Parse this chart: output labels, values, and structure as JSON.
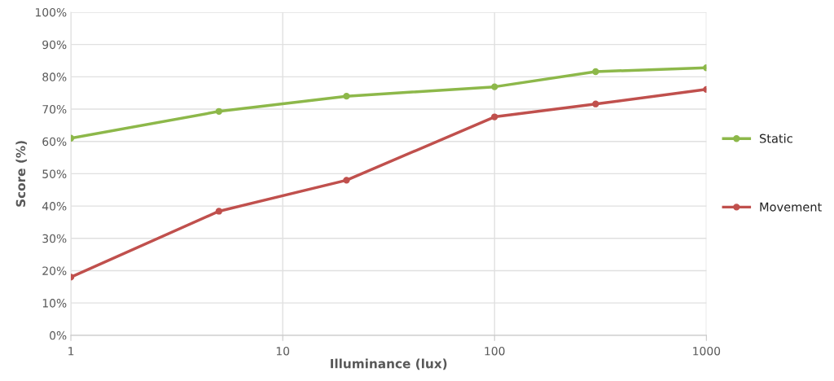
{
  "chart_data": {
    "type": "line",
    "xlabel": "Illuminance (lux)",
    "ylabel": "Score (%)",
    "x": [
      1,
      5,
      20,
      100,
      300,
      1000
    ],
    "series": [
      {
        "name": "Static",
        "color": "#8db84a",
        "values": [
          61,
          69.3,
          74,
          76.9,
          81.6,
          82.8
        ]
      },
      {
        "name": "Movement",
        "color": "#c0504d",
        "values": [
          18,
          38.4,
          48,
          67.6,
          71.6,
          76.1
        ]
      }
    ],
    "log": "x",
    "xlim": [
      1,
      1000
    ],
    "xticks": [
      1,
      10,
      100,
      1000
    ],
    "ylim": [
      0,
      100
    ],
    "yticks": [
      {
        "value": 0,
        "label": "0%"
      },
      {
        "value": 10,
        "label": "10%"
      },
      {
        "value": 20,
        "label": "20%"
      },
      {
        "value": 30,
        "label": "30%"
      },
      {
        "value": 40,
        "label": "40%"
      },
      {
        "value": 50,
        "label": "50%"
      },
      {
        "value": 60,
        "label": "60%"
      },
      {
        "value": 70,
        "label": "70%"
      },
      {
        "value": 80,
        "label": "80%"
      },
      {
        "value": 90,
        "label": "90%"
      },
      {
        "value": 100,
        "label": "100%"
      }
    ],
    "grid": true,
    "legend": "right",
    "marker": "circle",
    "line_style": "solid"
  }
}
